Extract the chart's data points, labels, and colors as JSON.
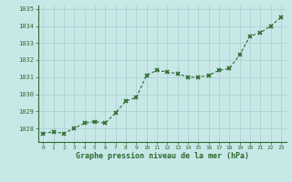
{
  "x": [
    0,
    1,
    2,
    3,
    4,
    5,
    6,
    7,
    8,
    9,
    10,
    11,
    12,
    13,
    14,
    15,
    16,
    17,
    18,
    19,
    20,
    21,
    22,
    23
  ],
  "y": [
    1027.7,
    1027.8,
    1027.7,
    1028.0,
    1028.3,
    1028.4,
    1028.3,
    1028.9,
    1029.6,
    1029.8,
    1031.1,
    1031.4,
    1031.3,
    1031.2,
    1031.0,
    1031.0,
    1031.1,
    1031.4,
    1031.5,
    1032.3,
    1033.4,
    1033.6,
    1034.0,
    1034.5
  ],
  "line_color": "#2d6a2d",
  "marker": "x",
  "bg_color": "#c8e8e8",
  "grid_color": "#aacccc",
  "xlabel": "Graphe pression niveau de la mer (hPa)",
  "xlabel_color": "#2d6a2d",
  "tick_color": "#2d6a2d",
  "ylim_min": 1027.2,
  "ylim_max": 1035.2,
  "yticks": [
    1028,
    1029,
    1030,
    1031,
    1032,
    1033,
    1034,
    1035
  ],
  "xticks": [
    0,
    1,
    2,
    3,
    4,
    5,
    6,
    7,
    8,
    9,
    10,
    11,
    12,
    13,
    14,
    15,
    16,
    17,
    18,
    19,
    20,
    21,
    22,
    23
  ],
  "spine_color": "#2d6a2d"
}
